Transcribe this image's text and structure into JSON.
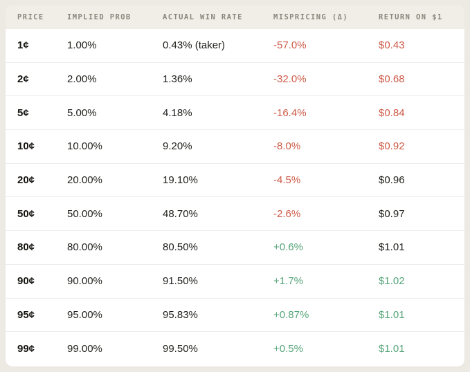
{
  "colors": {
    "negative": "#cd5a47",
    "positive": "#55a478",
    "neutral": "#21201c"
  },
  "table": {
    "columns": [
      {
        "label": "PRICE"
      },
      {
        "label": "IMPLIED PROB"
      },
      {
        "label": "ACTUAL WIN RATE"
      },
      {
        "label": "MISPRICING (Δ)"
      },
      {
        "label": "RETURN ON $1"
      }
    ],
    "rows": [
      {
        "price": "1¢",
        "implied": "1.00%",
        "actual": "0.43% (taker)",
        "mispricing": "-57.0%",
        "mispricing_tone": "negative",
        "return": "$0.43",
        "return_tone": "negative"
      },
      {
        "price": "2¢",
        "implied": "2.00%",
        "actual": "1.36%",
        "mispricing": "-32.0%",
        "mispricing_tone": "negative",
        "return": "$0.68",
        "return_tone": "negative"
      },
      {
        "price": "5¢",
        "implied": "5.00%",
        "actual": "4.18%",
        "mispricing": "-16.4%",
        "mispricing_tone": "negative",
        "return": "$0.84",
        "return_tone": "negative"
      },
      {
        "price": "10¢",
        "implied": "10.00%",
        "actual": "9.20%",
        "mispricing": "-8.0%",
        "mispricing_tone": "negative",
        "return": "$0.92",
        "return_tone": "negative"
      },
      {
        "price": "20¢",
        "implied": "20.00%",
        "actual": "19.10%",
        "mispricing": "-4.5%",
        "mispricing_tone": "negative",
        "return": "$0.96",
        "return_tone": "neutral"
      },
      {
        "price": "50¢",
        "implied": "50.00%",
        "actual": "48.70%",
        "mispricing": "-2.6%",
        "mispricing_tone": "negative",
        "return": "$0.97",
        "return_tone": "neutral"
      },
      {
        "price": "80¢",
        "implied": "80.00%",
        "actual": "80.50%",
        "mispricing": "+0.6%",
        "mispricing_tone": "positive",
        "return": "$1.01",
        "return_tone": "neutral"
      },
      {
        "price": "90¢",
        "implied": "90.00%",
        "actual": "91.50%",
        "mispricing": "+1.7%",
        "mispricing_tone": "positive",
        "return": "$1.02",
        "return_tone": "positive"
      },
      {
        "price": "95¢",
        "implied": "95.00%",
        "actual": "95.83%",
        "mispricing": "+0.87%",
        "mispricing_tone": "positive",
        "return": "$1.01",
        "return_tone": "positive"
      },
      {
        "price": "99¢",
        "implied": "99.00%",
        "actual": "99.50%",
        "mispricing": "+0.5%",
        "mispricing_tone": "positive",
        "return": "$1.01",
        "return_tone": "positive"
      }
    ]
  },
  "chart_data": {
    "type": "table",
    "title": "",
    "columns": [
      "PRICE",
      "IMPLIED PROB",
      "ACTUAL WIN RATE",
      "MISPRICING (Δ)",
      "RETURN ON $1"
    ],
    "rows": [
      [
        "1¢",
        "1.00%",
        "0.43% (taker)",
        "-57.0%",
        "$0.43"
      ],
      [
        "2¢",
        "2.00%",
        "1.36%",
        "-32.0%",
        "$0.68"
      ],
      [
        "5¢",
        "5.00%",
        "4.18%",
        "-16.4%",
        "$0.84"
      ],
      [
        "10¢",
        "10.00%",
        "9.20%",
        "-8.0%",
        "$0.92"
      ],
      [
        "20¢",
        "20.00%",
        "19.10%",
        "-4.5%",
        "$0.96"
      ],
      [
        "50¢",
        "50.00%",
        "48.70%",
        "-2.6%",
        "$0.97"
      ],
      [
        "80¢",
        "80.00%",
        "80.50%",
        "+0.6%",
        "$1.01"
      ],
      [
        "90¢",
        "90.00%",
        "91.50%",
        "+1.7%",
        "$1.02"
      ],
      [
        "95¢",
        "95.00%",
        "95.83%",
        "+0.87%",
        "$1.01"
      ],
      [
        "99¢",
        "99.00%",
        "99.50%",
        "+0.5%",
        "$1.01"
      ]
    ]
  }
}
